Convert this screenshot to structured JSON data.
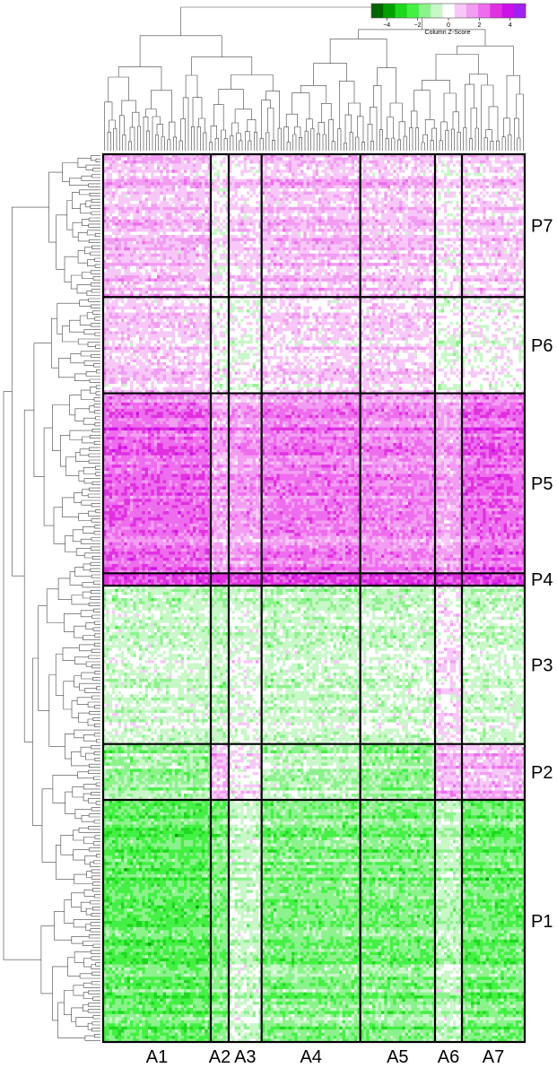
{
  "chart_data": {
    "type": "heatmap",
    "color_key": {
      "title": "Column Z-Score",
      "ticks": [
        -4,
        -2,
        0,
        2,
        4
      ],
      "tick_labels": [
        "−4",
        "−2",
        "0",
        "2",
        "4"
      ],
      "range": [
        -5,
        5
      ],
      "colors": [
        "#006400",
        "#00a000",
        "#1ed81e",
        "#44f044",
        "#8cf28c",
        "#c8f7c8",
        "#ffffff",
        "#f7c8f7",
        "#f29cf2",
        "#ee6cee",
        "#e030e0",
        "#cc10e8",
        "#a020f0"
      ]
    },
    "column_groups": [
      {
        "label": "A1",
        "columns": 36
      },
      {
        "label": "A2",
        "columns": 6
      },
      {
        "label": "A3",
        "columns": 11
      },
      {
        "label": "A4",
        "columns": 33
      },
      {
        "label": "A5",
        "columns": 25
      },
      {
        "label": "A6",
        "columns": 9
      },
      {
        "label": "A7",
        "columns": 21
      }
    ],
    "row_groups": [
      {
        "label": "P7",
        "rows": 46,
        "mean_z": [
          0.9,
          0.1,
          0.5,
          0.9,
          0.8,
          0.2,
          0.6
        ]
      },
      {
        "label": "P6",
        "rows": 31,
        "mean_z": [
          0.7,
          0.0,
          -0.1,
          0.5,
          0.6,
          -0.2,
          0.0
        ]
      },
      {
        "label": "P5",
        "rows": 58,
        "mean_z": [
          2.3,
          1.2,
          1.5,
          2.0,
          1.8,
          1.3,
          2.3
        ]
      },
      {
        "label": "P4",
        "rows": 4,
        "mean_z": [
          3.2,
          3.2,
          3.0,
          3.2,
          3.2,
          3.2,
          3.2
        ]
      },
      {
        "label": "P3",
        "rows": 51,
        "mean_z": [
          -0.6,
          -0.8,
          -0.3,
          -0.7,
          -0.6,
          0.3,
          -0.6
        ]
      },
      {
        "label": "P2",
        "rows": 18,
        "mean_z": [
          -1.2,
          1.0,
          0.2,
          -0.9,
          -1.3,
          1.1,
          1.1
        ]
      },
      {
        "label": "P1",
        "rows": 78,
        "mean_z": [
          -2.0,
          -1.6,
          -0.6,
          -1.6,
          -1.6,
          -0.8,
          -1.8
        ]
      }
    ]
  }
}
